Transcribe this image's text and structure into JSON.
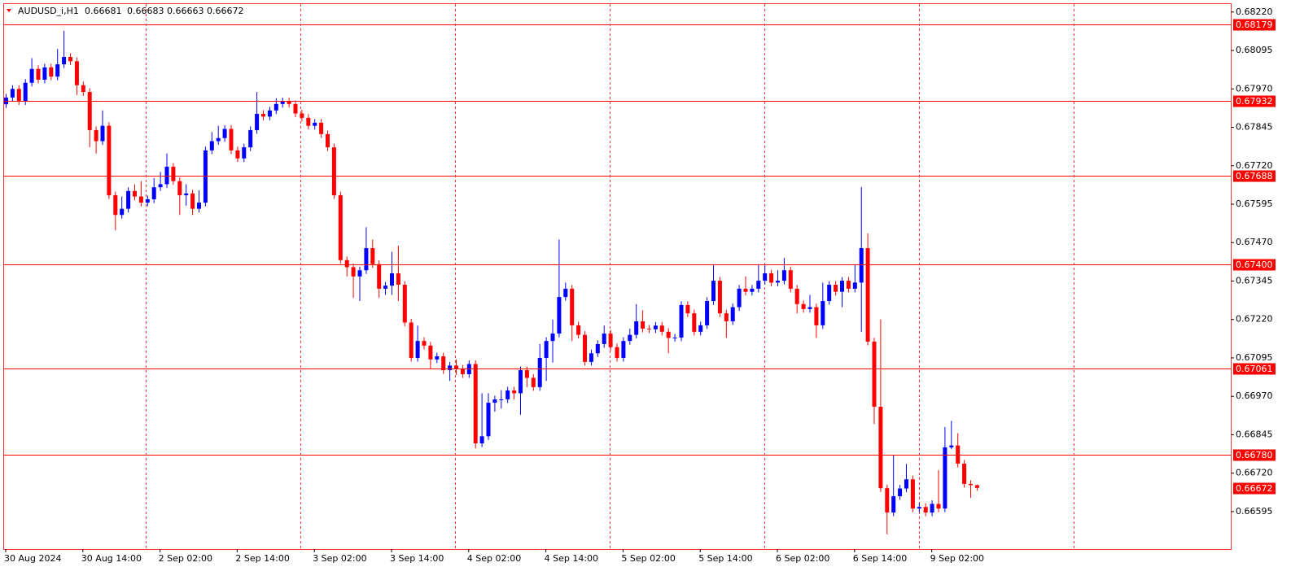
{
  "chart_data": {
    "type": "candlestick",
    "title": "AUDUSD_i,H1",
    "up_color": "#0000ff",
    "down_color": "#ff0000",
    "level_color": "#ff0000",
    "ylim": [
      0.66473,
      0.68246
    ],
    "yticks": [
      {
        "value": 0.6822,
        "label": "0.68220"
      },
      0.68095,
      {
        "value": 0.6797,
        "label": "0.67970"
      },
      0.67845,
      {
        "value": 0.6772,
        "label": "0.67720"
      },
      0.67595,
      {
        "value": 0.6747,
        "label": "0.67470"
      },
      0.67345,
      {
        "value": 0.6722,
        "label": "0.67220"
      },
      0.67095,
      {
        "value": 0.6697,
        "label": "0.66970"
      },
      0.66845,
      {
        "value": 0.6672,
        "label": "0.66720"
      },
      0.66595
    ],
    "levels": [
      0.68179,
      0.67932,
      0.67688,
      0.674,
      0.67061,
      0.6678
    ],
    "level_labels": [
      "0.68179",
      "0.67932",
      "0.67688",
      "0.67400",
      "0.67061",
      "0.66780"
    ],
    "categories": [
      "30 Aug 2024",
      null,
      null,
      null,
      null,
      null,
      null,
      null,
      null,
      null,
      null,
      null,
      "30 Aug 14:00",
      null,
      null,
      null,
      null,
      null,
      null,
      null,
      null,
      null,
      null,
      null,
      "2 Sep 02:00",
      null,
      null,
      null,
      null,
      null,
      null,
      null,
      null,
      null,
      null,
      null,
      "2 Sep 14:00",
      null,
      null,
      null,
      null,
      null,
      null,
      null,
      null,
      null,
      null,
      null,
      "3 Sep 02:00",
      null,
      null,
      null,
      null,
      null,
      null,
      null,
      null,
      null,
      null,
      null,
      "3 Sep 14:00",
      null,
      null,
      null,
      null,
      null,
      null,
      null,
      null,
      null,
      null,
      null,
      "4 Sep 02:00",
      null,
      null,
      null,
      null,
      null,
      null,
      null,
      null,
      null,
      null,
      null,
      "4 Sep 14:00",
      null,
      null,
      null,
      null,
      null,
      null,
      null,
      null,
      null,
      null,
      null,
      "5 Sep 02:00",
      null,
      null,
      null,
      null,
      null,
      null,
      null,
      null,
      null,
      null,
      null,
      "5 Sep 14:00",
      null,
      null,
      null,
      null,
      null,
      null,
      null,
      null,
      null,
      null,
      null,
      "6 Sep 02:00",
      null,
      null,
      null,
      null,
      null,
      null,
      null,
      null,
      null,
      null,
      null,
      "6 Sep 14:00",
      null,
      null,
      null,
      null,
      null,
      null,
      null,
      null,
      null,
      null,
      null,
      "9 Sep 02:00",
      null,
      null,
      null,
      null,
      null,
      null,
      null
    ],
    "candles": [
      [
        0.6792,
        0.67954,
        0.67908,
        0.67942
      ],
      [
        0.67942,
        0.67982,
        0.6793,
        0.6797
      ],
      [
        0.6797,
        0.67982,
        0.67918,
        0.6793
      ],
      [
        0.6793,
        0.68002,
        0.67918,
        0.6799
      ],
      [
        0.6799,
        0.6807,
        0.67978,
        0.68035
      ],
      [
        0.68035,
        0.68047,
        0.67988,
        0.68
      ],
      [
        0.68,
        0.68052,
        0.67988,
        0.6804
      ],
      [
        0.6804,
        0.68052,
        0.67998,
        0.6801
      ],
      [
        0.6801,
        0.681,
        0.67998,
        0.6805
      ],
      [
        0.6805,
        0.68159,
        0.68038,
        0.68074
      ],
      [
        0.68074,
        0.68086,
        0.68048,
        0.6806
      ],
      [
        0.6806,
        0.68072,
        0.6795,
        0.67982
      ],
      [
        0.67982,
        0.67994,
        0.67948,
        0.6796
      ],
      [
        0.6796,
        0.67972,
        0.6778,
        0.67836
      ],
      [
        0.67836,
        0.67848,
        0.6776,
        0.678
      ],
      [
        0.678,
        0.679,
        0.67788,
        0.6785
      ],
      [
        0.6785,
        0.67862,
        0.67612,
        0.67624
      ],
      [
        0.67624,
        0.67636,
        0.6751,
        0.6756
      ],
      [
        0.6756,
        0.6762,
        0.67548,
        0.6758
      ],
      [
        0.6758,
        0.6765,
        0.67568,
        0.67638
      ],
      [
        0.67638,
        0.6766,
        0.67608,
        0.6762
      ],
      [
        0.6762,
        0.6767,
        0.67588,
        0.676
      ],
      [
        0.676,
        0.67623,
        0.67588,
        0.67611
      ],
      [
        0.67611,
        0.6768,
        0.67599,
        0.6765
      ],
      [
        0.6765,
        0.677,
        0.67638,
        0.6766
      ],
      [
        0.6766,
        0.6776,
        0.67648,
        0.67717
      ],
      [
        0.67717,
        0.67729,
        0.67658,
        0.6767
      ],
      [
        0.6767,
        0.67682,
        0.6756,
        0.67624
      ],
      [
        0.67624,
        0.6766,
        0.6759,
        0.6763
      ],
      [
        0.6763,
        0.67642,
        0.6756,
        0.6758
      ],
      [
        0.6758,
        0.6764,
        0.67568,
        0.676
      ],
      [
        0.676,
        0.67782,
        0.67588,
        0.6777
      ],
      [
        0.6777,
        0.6783,
        0.67758,
        0.678
      ],
      [
        0.678,
        0.6785,
        0.67788,
        0.6781
      ],
      [
        0.6781,
        0.67852,
        0.67798,
        0.6784
      ],
      [
        0.6784,
        0.67852,
        0.67758,
        0.6777
      ],
      [
        0.6777,
        0.67782,
        0.67732,
        0.67744
      ],
      [
        0.67744,
        0.67792,
        0.67732,
        0.6778
      ],
      [
        0.6778,
        0.67848,
        0.67768,
        0.67836
      ],
      [
        0.67836,
        0.6796,
        0.67824,
        0.67889
      ],
      [
        0.67889,
        0.67901,
        0.67868,
        0.6788
      ],
      [
        0.6788,
        0.67912,
        0.67868,
        0.679
      ],
      [
        0.679,
        0.6794,
        0.67888,
        0.67921
      ],
      [
        0.67921,
        0.67942,
        0.67909,
        0.6793
      ],
      [
        0.6793,
        0.67942,
        0.67909,
        0.67921
      ],
      [
        0.67921,
        0.67933,
        0.67878,
        0.6789
      ],
      [
        0.6789,
        0.67902,
        0.67864,
        0.67876
      ],
      [
        0.67876,
        0.67888,
        0.67838,
        0.6785
      ],
      [
        0.6785,
        0.67872,
        0.67838,
        0.6786
      ],
      [
        0.6786,
        0.67872,
        0.67811,
        0.67823
      ],
      [
        0.67823,
        0.67835,
        0.67768,
        0.6778
      ],
      [
        0.6778,
        0.67792,
        0.67612,
        0.67624
      ],
      [
        0.67624,
        0.67636,
        0.67401,
        0.67413
      ],
      [
        0.67413,
        0.67425,
        0.6736,
        0.6739
      ],
      [
        0.6739,
        0.67402,
        0.6729,
        0.6736
      ],
      [
        0.6736,
        0.67392,
        0.6728,
        0.6738
      ],
      [
        0.6738,
        0.6752,
        0.67368,
        0.67452
      ],
      [
        0.67452,
        0.6748,
        0.67388,
        0.674
      ],
      [
        0.674,
        0.67412,
        0.6729,
        0.6732
      ],
      [
        0.6732,
        0.67342,
        0.673,
        0.6733
      ],
      [
        0.6733,
        0.6744,
        0.673,
        0.6737
      ],
      [
        0.6737,
        0.6746,
        0.6728,
        0.67333
      ],
      [
        0.67333,
        0.67345,
        0.67198,
        0.6721
      ],
      [
        0.6721,
        0.67222,
        0.67083,
        0.67095
      ],
      [
        0.67095,
        0.672,
        0.67083,
        0.6715
      ],
      [
        0.6715,
        0.67162,
        0.67123,
        0.67135
      ],
      [
        0.67135,
        0.67147,
        0.6706,
        0.6709
      ],
      [
        0.6709,
        0.67112,
        0.67078,
        0.671
      ],
      [
        0.671,
        0.67112,
        0.67043,
        0.67055
      ],
      [
        0.67055,
        0.67082,
        0.6702,
        0.6707
      ],
      [
        0.6707,
        0.6709,
        0.6704,
        0.6706
      ],
      [
        0.6706,
        0.67072,
        0.6703,
        0.67042
      ],
      [
        0.67042,
        0.67087,
        0.6703,
        0.67075
      ],
      [
        0.67075,
        0.67087,
        0.668,
        0.66817
      ],
      [
        0.66817,
        0.6698,
        0.66805,
        0.6684
      ],
      [
        0.6684,
        0.6698,
        0.66828,
        0.66949
      ],
      [
        0.66949,
        0.66972,
        0.6692,
        0.6696
      ],
      [
        0.6696,
        0.6699,
        0.6693,
        0.6696
      ],
      [
        0.6696,
        0.67001,
        0.66948,
        0.66989
      ],
      [
        0.66989,
        0.67001,
        0.6696,
        0.6698
      ],
      [
        0.6698,
        0.67067,
        0.6691,
        0.67055
      ],
      [
        0.67055,
        0.67067,
        0.67,
        0.6703
      ],
      [
        0.6703,
        0.67042,
        0.66988,
        0.67
      ],
      [
        0.67,
        0.6714,
        0.66988,
        0.67095
      ],
      [
        0.67095,
        0.67162,
        0.6702,
        0.6715
      ],
      [
        0.6715,
        0.6722,
        0.6708,
        0.67174
      ],
      [
        0.67174,
        0.6748,
        0.67162,
        0.67293
      ],
      [
        0.67293,
        0.6734,
        0.67281,
        0.6732
      ],
      [
        0.6732,
        0.67332,
        0.6715,
        0.67201
      ],
      [
        0.67201,
        0.67213,
        0.67158,
        0.6717
      ],
      [
        0.6717,
        0.67182,
        0.6707,
        0.67082
      ],
      [
        0.67082,
        0.67122,
        0.6707,
        0.6711
      ],
      [
        0.6711,
        0.67152,
        0.67098,
        0.6714
      ],
      [
        0.6714,
        0.672,
        0.67128,
        0.67174
      ],
      [
        0.67174,
        0.67186,
        0.67118,
        0.6713
      ],
      [
        0.6713,
        0.67142,
        0.67083,
        0.67095
      ],
      [
        0.67095,
        0.67162,
        0.67083,
        0.6715
      ],
      [
        0.6715,
        0.6719,
        0.67138,
        0.6717
      ],
      [
        0.6717,
        0.6727,
        0.67158,
        0.67214
      ],
      [
        0.67214,
        0.6725,
        0.67178,
        0.6719
      ],
      [
        0.6719,
        0.67202,
        0.67176,
        0.67188
      ],
      [
        0.67188,
        0.67212,
        0.67176,
        0.672
      ],
      [
        0.672,
        0.67212,
        0.67168,
        0.6718
      ],
      [
        0.6718,
        0.67192,
        0.6711,
        0.6716
      ],
      [
        0.6716,
        0.67173,
        0.67148,
        0.67161
      ],
      [
        0.67161,
        0.67279,
        0.67149,
        0.67267
      ],
      [
        0.67267,
        0.67279,
        0.67228,
        0.6724
      ],
      [
        0.6724,
        0.67252,
        0.67168,
        0.6718
      ],
      [
        0.6718,
        0.67213,
        0.67168,
        0.67201
      ],
      [
        0.67201,
        0.67292,
        0.67189,
        0.6728
      ],
      [
        0.6728,
        0.674,
        0.67268,
        0.67346
      ],
      [
        0.67346,
        0.67358,
        0.67228,
        0.6724
      ],
      [
        0.6724,
        0.67252,
        0.6716,
        0.67214
      ],
      [
        0.67214,
        0.67272,
        0.67202,
        0.6726
      ],
      [
        0.6726,
        0.67332,
        0.67248,
        0.6732
      ],
      [
        0.6732,
        0.6736,
        0.67298,
        0.6731
      ],
      [
        0.6731,
        0.67332,
        0.67298,
        0.6732
      ],
      [
        0.6732,
        0.674,
        0.67308,
        0.67346
      ],
      [
        0.67346,
        0.674,
        0.67334,
        0.6737
      ],
      [
        0.6737,
        0.67382,
        0.67328,
        0.6734
      ],
      [
        0.6734,
        0.6738,
        0.67328,
        0.67346
      ],
      [
        0.67346,
        0.6742,
        0.67334,
        0.6738
      ],
      [
        0.6738,
        0.67392,
        0.67308,
        0.6732
      ],
      [
        0.6732,
        0.67332,
        0.6724,
        0.6727
      ],
      [
        0.6727,
        0.67282,
        0.67242,
        0.67254
      ],
      [
        0.67254,
        0.673,
        0.67242,
        0.6726
      ],
      [
        0.6726,
        0.67272,
        0.6716,
        0.67201
      ],
      [
        0.67201,
        0.6734,
        0.67189,
        0.6728
      ],
      [
        0.6728,
        0.67345,
        0.67268,
        0.67333
      ],
      [
        0.67333,
        0.67345,
        0.67298,
        0.6731
      ],
      [
        0.6731,
        0.67358,
        0.6726,
        0.67346
      ],
      [
        0.67346,
        0.67358,
        0.67308,
        0.6732
      ],
      [
        0.6732,
        0.674,
        0.67308,
        0.6734
      ],
      [
        0.6734,
        0.67651,
        0.6718,
        0.67452
      ],
      [
        0.67452,
        0.675,
        0.67136,
        0.67148
      ],
      [
        0.67148,
        0.6716,
        0.6688,
        0.66936
      ],
      [
        0.66936,
        0.6722,
        0.66659,
        0.66671
      ],
      [
        0.66671,
        0.66683,
        0.66521,
        0.66592
      ],
      [
        0.66592,
        0.6678,
        0.6658,
        0.66645
      ],
      [
        0.66645,
        0.66682,
        0.66633,
        0.6667
      ],
      [
        0.6667,
        0.6675,
        0.66658,
        0.667
      ],
      [
        0.667,
        0.66712,
        0.66593,
        0.66605
      ],
      [
        0.66605,
        0.66622,
        0.66593,
        0.6661
      ],
      [
        0.6661,
        0.66622,
        0.6658,
        0.66592
      ],
      [
        0.66592,
        0.66632,
        0.6658,
        0.6662
      ],
      [
        0.6662,
        0.6673,
        0.66593,
        0.66605
      ],
      [
        0.66605,
        0.6687,
        0.66593,
        0.66804
      ],
      [
        0.66804,
        0.6689,
        0.66798,
        0.6681
      ],
      [
        0.6681,
        0.6685,
        0.66739,
        0.66751
      ],
      [
        0.66751,
        0.66763,
        0.66673,
        0.66685
      ],
      [
        0.66685,
        0.66697,
        0.6664,
        0.66681
      ],
      [
        0.66681,
        0.66683,
        0.66663,
        0.66672
      ]
    ]
  }
}
